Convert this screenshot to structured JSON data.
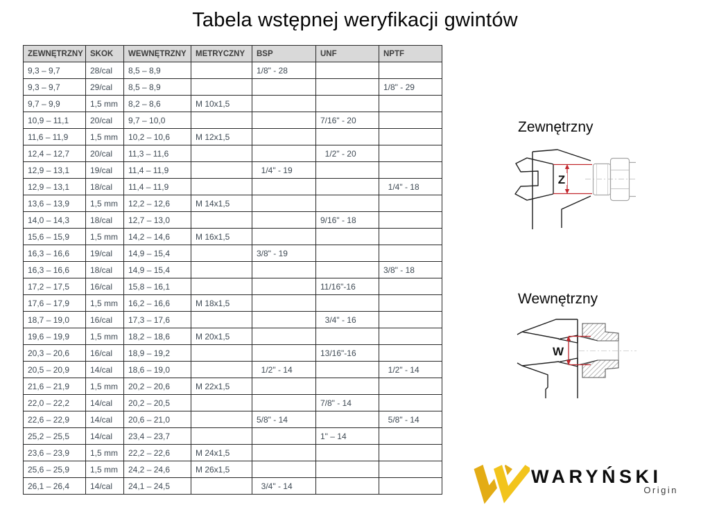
{
  "title": "Tabela wstępnej weryfikacji gwintów",
  "table": {
    "headers": [
      "ZEWNĘTRZNY",
      "SKOK",
      "WEWNĘTRZNY",
      "METRYCZNY",
      "BSP",
      "UNF",
      "NPTF"
    ],
    "rows": [
      [
        "9,3 – 9,7",
        "28/cal",
        "8,5 – 8,9",
        "",
        "1/8\" - 28",
        "",
        ""
      ],
      [
        "9,3 – 9,7",
        "29/cal",
        "8,5 – 8,9",
        "",
        "",
        "",
        "1/8\" - 29"
      ],
      [
        "9,7 – 9,9",
        "1,5 mm",
        "8,2 – 8,6",
        "M 10x1,5",
        "",
        "",
        ""
      ],
      [
        "10,9 – 11,1",
        "20/cal",
        "9,7 – 10,0",
        "",
        "",
        "7/16\" - 20",
        ""
      ],
      [
        "11,6 – 11,9",
        "1,5 mm",
        "10,2 – 10,6",
        "M 12x1,5",
        "",
        "",
        ""
      ],
      [
        "12,4 – 12,7",
        "20/cal",
        "11,3 – 11,6",
        "",
        "",
        "  1/2\" - 20",
        ""
      ],
      [
        "12,9 – 13,1",
        "19/cal",
        "11,4 – 11,9",
        "",
        "  1/4\" - 19",
        "",
        ""
      ],
      [
        "12,9 – 13,1",
        "18/cal",
        "11,4 – 11,9",
        "",
        "",
        "",
        "  1/4\" - 18"
      ],
      [
        "13,6 – 13,9",
        "1,5 mm",
        "12,2 – 12,6",
        "M 14x1,5",
        "",
        "",
        ""
      ],
      [
        "14,0 – 14,3",
        "18/cal",
        "12,7 – 13,0",
        "",
        "",
        "9/16\" - 18",
        ""
      ],
      [
        "15,6 – 15,9",
        "1,5 mm",
        "14,2 – 14,6",
        "M 16x1,5",
        "",
        "",
        ""
      ],
      [
        "16,3 – 16,6",
        "19/cal",
        "14,9 – 15,4",
        "",
        "3/8\" - 19",
        "",
        ""
      ],
      [
        "16,3 – 16,6",
        "18/cal",
        "14,9 – 15,4",
        "",
        "",
        "",
        "3/8\" - 18"
      ],
      [
        "17,2 – 17,5",
        "16/cal",
        "15,8 – 16,1",
        "",
        "",
        "11/16\"-16",
        ""
      ],
      [
        "17,6 – 17,9",
        "1,5 mm",
        "16,2 – 16,6",
        "M 18x1,5",
        "",
        "",
        ""
      ],
      [
        "18,7 – 19,0",
        "16/cal",
        "17,3 – 17,6",
        "",
        "",
        "  3/4\" - 16",
        ""
      ],
      [
        "19,6 – 19,9",
        "1,5 mm",
        "18,2 – 18,6",
        "M 20x1,5",
        "",
        "",
        ""
      ],
      [
        "20,3 – 20,6",
        "16/cal",
        "18,9 – 19,2",
        "",
        "",
        "13/16\"-16",
        ""
      ],
      [
        "20,5 – 20,9",
        "14/cal",
        "18,6 – 19,0",
        "",
        "  1/2\" - 14",
        "",
        "  1/2\" - 14"
      ],
      [
        "21,6 – 21,9",
        "1,5 mm",
        "20,2 – 20,6",
        "M 22x1,5",
        "",
        "",
        ""
      ],
      [
        "22,0 – 22,2",
        "14/cal",
        "20,2 – 20,5",
        "",
        "",
        "7/8\" - 14",
        ""
      ],
      [
        "22,6 – 22,9",
        "14/cal",
        "20,6 – 21,0",
        "",
        "5/8\" - 14",
        "",
        "  5/8\" - 14"
      ],
      [
        "25,2 – 25,5",
        "14/cal",
        "23,4 – 23,7",
        "",
        "",
        "1\" – 14",
        ""
      ],
      [
        "23,6 – 23,9",
        "1,5 mm",
        "22,2 – 22,6",
        "M 24x1,5",
        "",
        "",
        ""
      ],
      [
        "25,6 – 25,9",
        "1,5 mm",
        "24,2 – 24,6",
        "M 26x1,5",
        "",
        "",
        ""
      ],
      [
        "26,1 – 26,4",
        "14/cal",
        "24,1 – 24,5",
        "",
        "  3/4\" - 14",
        "",
        ""
      ]
    ]
  },
  "diagrams": {
    "male": {
      "label": "Zewnętrzny",
      "dim_letter": "Z"
    },
    "female": {
      "label": "Wewnętrzny",
      "dim_letter": "W"
    }
  },
  "logo": {
    "brand": "WARYŃSKI",
    "sub": "Origin"
  },
  "colors": {
    "header_bg": "#d9d9d9",
    "table_text": "#3e4953",
    "border": "#262626",
    "dimension_red": "#c1272d",
    "logo_yellow_dark": "#e3ac15",
    "logo_yellow_light": "#f2c41c"
  }
}
